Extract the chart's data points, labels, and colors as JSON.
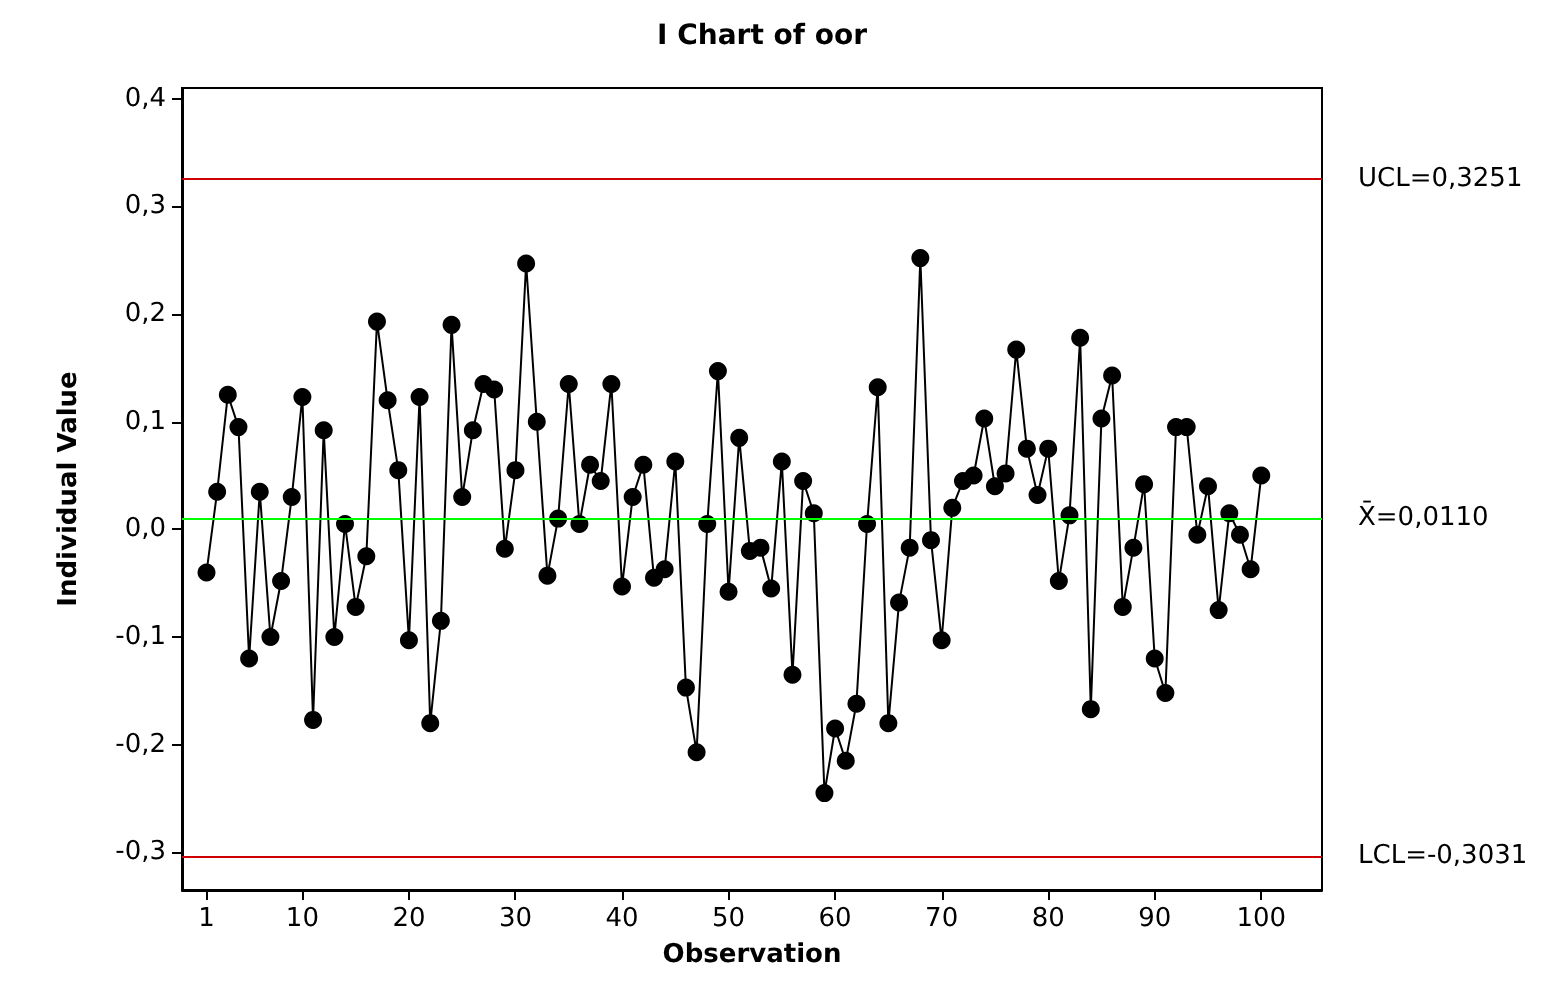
{
  "chart_data": {
    "type": "line",
    "title": "I Chart of oor",
    "xlabel": "Observation",
    "ylabel": "Individual Value",
    "x": [
      1,
      2,
      3,
      4,
      5,
      6,
      7,
      8,
      9,
      10,
      11,
      12,
      13,
      14,
      15,
      16,
      17,
      18,
      19,
      20,
      21,
      22,
      23,
      24,
      25,
      26,
      27,
      28,
      29,
      30,
      31,
      32,
      33,
      34,
      35,
      36,
      37,
      38,
      39,
      40,
      41,
      42,
      43,
      44,
      45,
      46,
      47,
      48,
      49,
      50,
      51,
      52,
      53,
      54,
      55,
      56,
      57,
      58,
      59,
      60,
      61,
      62,
      63,
      64,
      65,
      66,
      67,
      68,
      69,
      70,
      71,
      72,
      73,
      74,
      75,
      76,
      77,
      78,
      79,
      80,
      81,
      82,
      83,
      84,
      85,
      86,
      87,
      88,
      89,
      90,
      91,
      92,
      93,
      94,
      95,
      96,
      97,
      98,
      99,
      100
    ],
    "series": [
      {
        "color": "#000000",
        "values": [
          -0.04,
          0.035,
          0.125,
          0.095,
          -0.12,
          0.035,
          -0.1,
          -0.048,
          0.03,
          0.123,
          -0.177,
          0.092,
          -0.1,
          0.005,
          -0.072,
          -0.025,
          0.193,
          0.12,
          0.055,
          -0.103,
          0.123,
          -0.18,
          -0.085,
          0.19,
          0.03,
          0.092,
          0.135,
          0.13,
          -0.018,
          0.055,
          0.247,
          0.1,
          -0.043,
          0.01,
          0.135,
          0.005,
          0.06,
          0.045,
          0.135,
          -0.053,
          0.03,
          0.06,
          -0.045,
          -0.037,
          0.063,
          -0.147,
          -0.207,
          0.005,
          0.147,
          -0.058,
          0.085,
          -0.02,
          -0.017,
          -0.055,
          0.063,
          -0.135,
          0.045,
          0.015,
          -0.245,
          -0.185,
          -0.215,
          -0.162,
          0.005,
          0.132,
          -0.18,
          -0.068,
          -0.017,
          0.252,
          -0.01,
          -0.103,
          0.02,
          0.045,
          0.05,
          0.103,
          0.04,
          0.052,
          0.167,
          0.075,
          0.032,
          0.075,
          -0.048,
          0.013,
          0.178,
          -0.167,
          0.103,
          0.143,
          -0.072,
          -0.017,
          0.042,
          -0.12,
          -0.152,
          0.095,
          0.095,
          -0.005,
          0.04,
          -0.075,
          0.015,
          -0.005,
          -0.037,
          0.05
        ]
      }
    ],
    "xlim": [
      -1.3,
      105.7
    ],
    "ylim": [
      -0.335,
      0.41
    ],
    "xticks": [
      1,
      10,
      20,
      30,
      40,
      50,
      60,
      70,
      80,
      90,
      100
    ],
    "yticks": [
      {
        "value": -0.3,
        "label": "-0,3"
      },
      {
        "value": -0.2,
        "label": "-0,2"
      },
      {
        "value": -0.1,
        "label": "-0,1"
      },
      {
        "value": 0,
        "label": "0,0"
      },
      {
        "value": 0.1,
        "label": "0,1"
      },
      {
        "value": 0.2,
        "label": "0,2"
      },
      {
        "value": 0.3,
        "label": "0,3"
      },
      {
        "value": 0.4,
        "label": "0,4"
      }
    ],
    "ref_lines": [
      {
        "axis": "y",
        "value": 0.3251,
        "label": "UCL=0,3251",
        "color": "#cc0000"
      },
      {
        "axis": "y",
        "value": 0.011,
        "label": "X̄=0,0110",
        "color": "#00ff00"
      },
      {
        "axis": "y",
        "value": -0.3031,
        "label": "LCL=-0,3031",
        "color": "#cc0000"
      }
    ],
    "grid": false,
    "marker": "circle",
    "line_style": "solid"
  }
}
